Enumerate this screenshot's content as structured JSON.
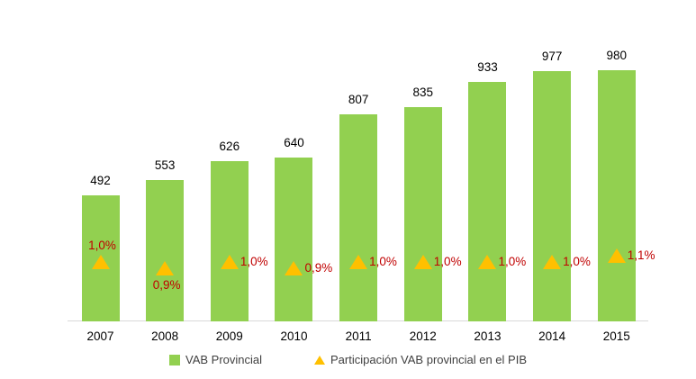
{
  "chart_data": {
    "type": "bar",
    "title": "",
    "xlabel": "",
    "ylabel": "",
    "categories": [
      "2007",
      "2008",
      "2009",
      "2010",
      "2011",
      "2012",
      "2013",
      "2014",
      "2015"
    ],
    "series": [
      {
        "name": "VAB Provincial",
        "type": "bar",
        "color": "#92D050",
        "values": [
          492,
          553,
          626,
          640,
          807,
          835,
          933,
          977,
          980
        ],
        "value_labels": [
          "492",
          "553",
          "626",
          "640",
          "807",
          "835",
          "933",
          "977",
          "980"
        ]
      },
      {
        "name": "Participación VAB provincial en el PIB",
        "type": "scatter",
        "marker": "triangle",
        "color": "#FFC000",
        "values": [
          1.0,
          0.9,
          1.0,
          0.9,
          1.0,
          1.0,
          1.0,
          1.0,
          1.1
        ],
        "value_labels": [
          "1,0%",
          "0,9%",
          "1,0%",
          "0,9%",
          "1,0%",
          "1,0%",
          "1,0%",
          "1,0%",
          "1,1%"
        ],
        "label_placement": [
          "above",
          "below",
          "right",
          "right",
          "right",
          "right",
          "right",
          "right",
          "right"
        ]
      }
    ],
    "legend": {
      "position": "bottom",
      "entries": [
        {
          "label": "VAB Provincial"
        },
        {
          "label": "Participación VAB provincial en el PIB"
        }
      ]
    },
    "axes": {
      "x_ticks": [
        "2007",
        "2008",
        "2009",
        "2010",
        "2011",
        "2012",
        "2013",
        "2014",
        "2015"
      ],
      "y_axis_visible": false,
      "secondary_axis_visible": false,
      "gridlines": false,
      "bar_ylim": [
        0,
        1050
      ]
    },
    "colors": {
      "bar": "#92D050",
      "marker": "#FFC000",
      "pct_label_text": "#C00000",
      "value_label_text": "#000000",
      "tick_label_text": "#000000",
      "legend_text": "#404040",
      "axis_line": "#D9D9D9",
      "background": "#FFFFFF"
    }
  }
}
